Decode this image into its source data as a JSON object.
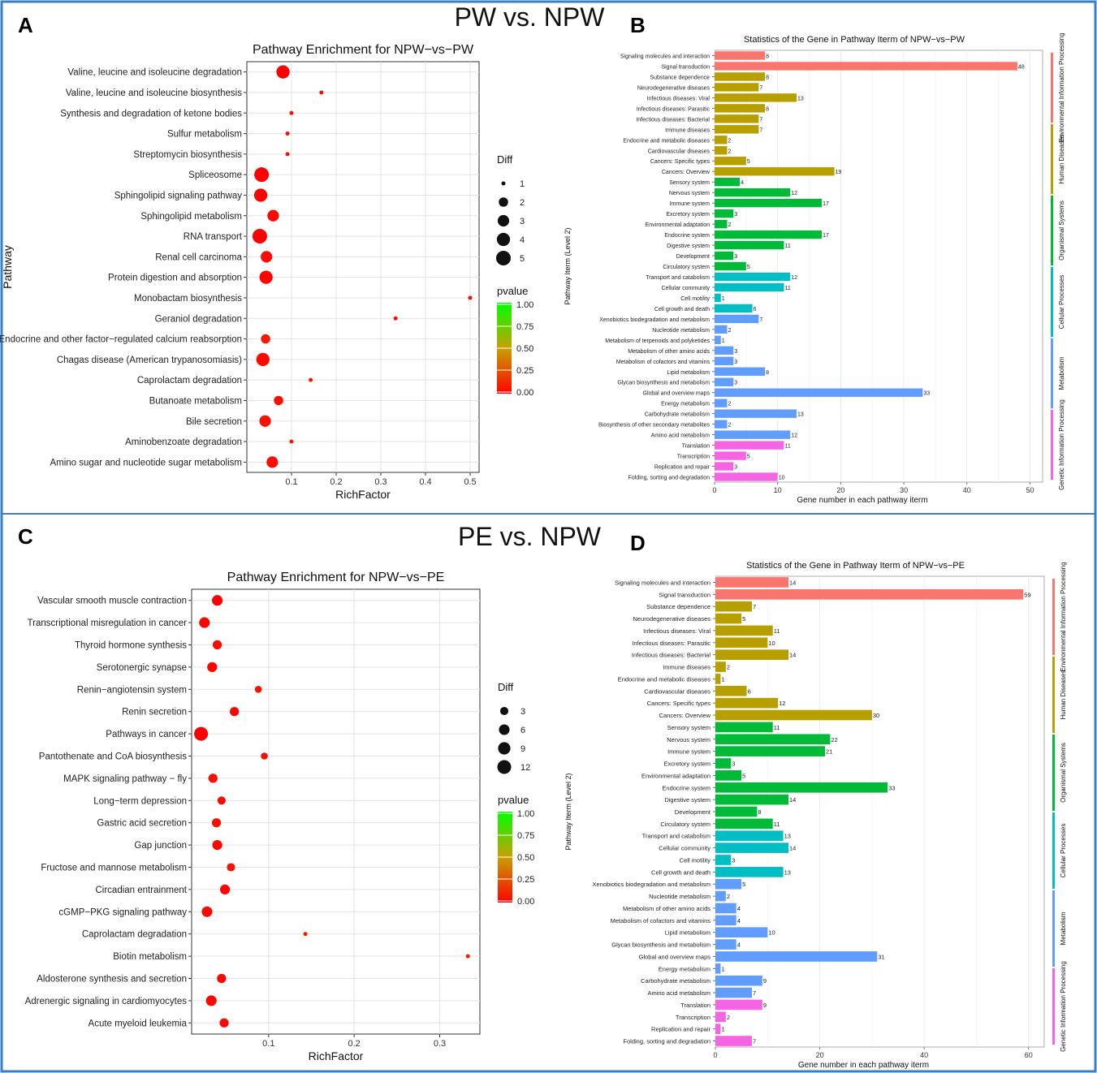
{
  "figure": {
    "border_color": "#3a7fc4",
    "top_heading": "PW vs. NPW",
    "bottom_heading": "PE vs. NPW",
    "panel_labels": [
      "A",
      "B",
      "C",
      "D"
    ]
  },
  "chart_data": [
    {
      "id": "A",
      "type": "scatter",
      "title": "Pathway Enrichment for NPW−vs−PW",
      "xlabel": "RichFactor",
      "ylabel": "Pathway",
      "xlim": [
        0,
        0.52
      ],
      "xticks": [
        0.1,
        0.2,
        0.3,
        0.4,
        0.5
      ],
      "size_legend_title": "Diff",
      "size_legend": [
        1,
        2,
        3,
        4,
        5
      ],
      "color_legend_title": "pvalue",
      "color_legend": [
        "1.00",
        "0.75",
        "0.50",
        "0.25",
        "0.00"
      ],
      "categories": [
        "Valine, leucine and isoleucine degradation",
        "Valine, leucine and isoleucine biosynthesis",
        "Synthesis and degradation of ketone bodies",
        "Sulfur metabolism",
        "Streptomycin biosynthesis",
        "Spliceosome",
        "Sphingolipid signaling pathway",
        "Sphingolipid metabolism",
        "RNA transport",
        "Renal cell carcinoma",
        "Protein digestion and absorption",
        "Monobactam biosynthesis",
        "Geraniol degradation",
        "Endocrine and other factor−regulated calcium reabsorption",
        "Chagas disease (American trypanosomiasis)",
        "Caprolactam degradation",
        "Butanoate metabolism",
        "Bile secretion",
        "Aminobenzoate degradation",
        "Amino sugar and nucleotide sugar metabolism"
      ],
      "richfactor": [
        0.081,
        0.167,
        0.1,
        0.091,
        0.091,
        0.033,
        0.031,
        0.059,
        0.029,
        0.044,
        0.043,
        0.5,
        0.333,
        0.042,
        0.036,
        0.143,
        0.071,
        0.041,
        0.1,
        0.057
      ],
      "diff": [
        4,
        1,
        1,
        1,
        1,
        5,
        4,
        3,
        5,
        3,
        4,
        1,
        1,
        2,
        4,
        1,
        2,
        3,
        1,
        3
      ],
      "pvalue": [
        0.0,
        0.05,
        0.05,
        0.05,
        0.05,
        0.0,
        0.01,
        0.02,
        0.0,
        0.03,
        0.01,
        0.05,
        0.05,
        0.08,
        0.03,
        0.07,
        0.04,
        0.06,
        0.08,
        0.04
      ]
    },
    {
      "id": "B",
      "type": "bar",
      "title": "Statistics of the Gene in Pathway Iterm of NPW−vs−PW",
      "xlabel": "Gene number in each pathway iterm",
      "ylabel": "Pathway Iterm (Level 2)",
      "xlim": [
        0,
        52
      ],
      "xticks": [
        0,
        10,
        20,
        30,
        40,
        50
      ],
      "categories": [
        "Signaling molecules and interaction",
        "Signal transduction",
        "Substance dependence",
        "Neurodegenerative diseases",
        "Infectious diseases: Viral",
        "Infectious diseases: Parasitic",
        "Infectious diseases: Bacterial",
        "Immune diseases",
        "Endocrine and metabolic diseases",
        "Cardiovascular diseases",
        "Cancers: Specific types",
        "Cancers: Overview",
        "Sensory system",
        "Nervous system",
        "Immune system",
        "Excretory system",
        "Environmental adaptation",
        "Endocrine system",
        "Digestive system",
        "Development",
        "Circulatory system",
        "Transport and catabolism",
        "Cellular community",
        "Cell motility",
        "Cell growth and death",
        "Xenobiotics biodegradation and metabolism",
        "Nucleotide metabolism",
        "Metabolism of terpenoids and polyketides",
        "Metabolism of other amino acids",
        "Metabolism of cofactors and vitamins",
        "Lipid metabolism",
        "Glycan biosynthesis and metabolism",
        "Global and overview maps",
        "Energy metabolism",
        "Carbohydrate metabolism",
        "Biosynthesis of other secondary metabolites",
        "Amino acid metabolism",
        "Translation",
        "Transcription",
        "Replication and repair",
        "Folding, sorting and degradation"
      ],
      "values": [
        8,
        48,
        8,
        7,
        13,
        8,
        7,
        7,
        2,
        2,
        5,
        19,
        4,
        12,
        17,
        3,
        2,
        17,
        11,
        3,
        5,
        12,
        11,
        1,
        6,
        7,
        2,
        1,
        3,
        3,
        8,
        3,
        33,
        2,
        13,
        2,
        12,
        11,
        5,
        3,
        10
      ],
      "group_index": [
        0,
        0,
        1,
        1,
        1,
        1,
        1,
        1,
        1,
        1,
        1,
        1,
        2,
        2,
        2,
        2,
        2,
        2,
        2,
        2,
        2,
        3,
        3,
        3,
        3,
        4,
        4,
        4,
        4,
        4,
        4,
        4,
        4,
        4,
        4,
        4,
        4,
        5,
        5,
        5,
        5
      ],
      "groups": [
        {
          "name": "Environmental Information Processing",
          "color": "#f8766d"
        },
        {
          "name": "Human Diseases",
          "color": "#b79f00"
        },
        {
          "name": "Organismal Systems",
          "color": "#00ba38"
        },
        {
          "name": "Cellular Processes",
          "color": "#00bfc4"
        },
        {
          "name": "Metabolism",
          "color": "#619cff"
        },
        {
          "name": "Genetic Information Processing",
          "color": "#f564e3"
        }
      ],
      "side_bar_groups": [
        0,
        1,
        2,
        3,
        4,
        5
      ]
    },
    {
      "id": "C",
      "type": "scatter",
      "title": "Pathway Enrichment for NPW−vs−PE",
      "xlabel": "RichFactor",
      "ylabel": "Pathway",
      "xlim": [
        0.01,
        0.347
      ],
      "xticks": [
        0.1,
        0.2,
        0.3
      ],
      "size_legend_title": "Diff",
      "size_legend": [
        3,
        6,
        9,
        12
      ],
      "color_legend_title": "pvalue",
      "color_legend": [
        "1.00",
        "0.75",
        "0.50",
        "0.25",
        "0.00"
      ],
      "categories": [
        "Vascular smooth muscle contraction",
        "Transcriptional misregulation in cancer",
        "Thyroid hormone synthesis",
        "Serotonergic synapse",
        "Renin−angiotensin system",
        "Renin secretion",
        "Pathways in cancer",
        "Pantothenate and CoA biosynthesis",
        "MAPK signaling pathway − fly",
        "Long−term depression",
        "Gastric acid secretion",
        "Gap junction",
        "Fructose and mannose metabolism",
        "Circadian entrainment",
        "cGMP−PKG signaling pathway",
        "Caprolactam degradation",
        "Biotin metabolism",
        "Aldosterone synthesis and secretion",
        "Adrenergic signaling in cardiomyocytes",
        "Acute myeloid leukemia"
      ],
      "richfactor": [
        0.04,
        0.025,
        0.04,
        0.034,
        0.088,
        0.06,
        0.021,
        0.095,
        0.035,
        0.045,
        0.039,
        0.04,
        0.056,
        0.049,
        0.028,
        0.143,
        0.333,
        0.045,
        0.033,
        0.048
      ],
      "diff": [
        6,
        6,
        4,
        5,
        2,
        4,
        12,
        2,
        4,
        3,
        4,
        5,
        3,
        5,
        6,
        1,
        1,
        4,
        6,
        4
      ],
      "pvalue": [
        0.0,
        0.01,
        0.03,
        0.02,
        0.05,
        0.01,
        0.0,
        0.04,
        0.04,
        0.03,
        0.05,
        0.02,
        0.05,
        0.01,
        0.03,
        0.07,
        0.08,
        0.02,
        0.02,
        0.03
      ]
    },
    {
      "id": "D",
      "type": "bar",
      "title": "Statistics of the Gene in Pathway Iterm of NPW−vs−PE",
      "xlabel": "Gene number in each pathway iterm",
      "ylabel": "Pathway Iterm (Level 2)",
      "xlim": [
        0,
        63
      ],
      "xticks": [
        0,
        20,
        40,
        60
      ],
      "categories": [
        "Signaling molecules and interaction",
        "Signal transduction",
        "Substance dependence",
        "Neurodegenerative diseases",
        "Infectious diseases: Viral",
        "Infectious diseases: Parasitic",
        "Infectious diseases: Bacterial",
        "Immune diseases",
        "Endocrine and metabolic diseases",
        "Cardiovascular diseases",
        "Cancers: Specific types",
        "Cancers: Overview",
        "Sensory system",
        "Nervous system",
        "Immune system",
        "Excretory system",
        "Environmental adaptation",
        "Endocrine system",
        "Digestive system",
        "Development",
        "Circulatory system",
        "Transport and catabolism",
        "Cellular community",
        "Cell motility",
        "Cell growth and death",
        "Xenobiotics biodegradation and metabolism",
        "Nucleotide metabolism",
        "Metabolism of other amino acids",
        "Metabolism of cofactors and vitamins",
        "Lipid metabolism",
        "Glycan biosynthesis and metabolism",
        "Global and overview maps",
        "Energy metabolism",
        "Carbohydrate metabolism",
        "Amino acid metabolism",
        "Translation",
        "Transcription",
        "Replication and repair",
        "Folding, sorting and degradation"
      ],
      "values": [
        14,
        59,
        7,
        5,
        11,
        10,
        14,
        2,
        1,
        6,
        12,
        30,
        11,
        22,
        21,
        3,
        5,
        33,
        14,
        8,
        11,
        13,
        14,
        3,
        13,
        5,
        2,
        4,
        4,
        10,
        4,
        31,
        1,
        9,
        7,
        9,
        2,
        1,
        7
      ],
      "group_index": [
        0,
        0,
        1,
        1,
        1,
        1,
        1,
        1,
        1,
        1,
        1,
        1,
        2,
        2,
        2,
        2,
        2,
        2,
        2,
        2,
        2,
        3,
        3,
        3,
        3,
        4,
        4,
        4,
        4,
        4,
        4,
        4,
        4,
        4,
        4,
        5,
        5,
        5,
        5
      ],
      "groups": [
        {
          "name": "Environmental Information Processing",
          "color": "#f8766d"
        },
        {
          "name": "Human Diseases",
          "color": "#b79f00"
        },
        {
          "name": "Organismal Systems",
          "color": "#00ba38"
        },
        {
          "name": "Cellular Processes",
          "color": "#00bfc4"
        },
        {
          "name": "Metabolism",
          "color": "#619cff"
        },
        {
          "name": "Genetic Information Processing",
          "color": "#f564e3"
        }
      ],
      "side_bar_groups": [
        0,
        1,
        2,
        3,
        4,
        5
      ]
    }
  ]
}
